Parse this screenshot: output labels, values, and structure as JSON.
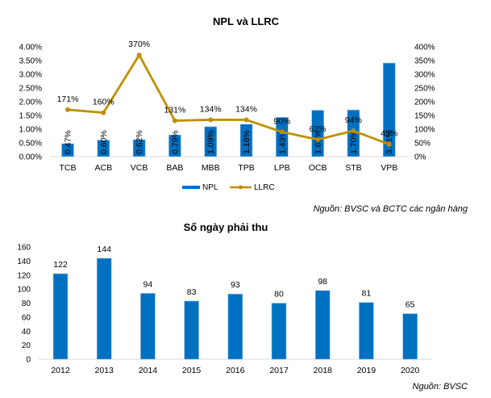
{
  "chart_data": [
    {
      "type": "bar+line",
      "title": "NPL và LLRC",
      "categories": [
        "TCB",
        "ACB",
        "VCB",
        "BAB",
        "MBB",
        "TPB",
        "LPB",
        "OCB",
        "STB",
        "VPB"
      ],
      "series": [
        {
          "name": "NPL",
          "type": "bar",
          "axis": "left",
          "color": "#0070C0",
          "values": [
            0.47,
            0.6,
            0.62,
            0.79,
            1.09,
            1.18,
            1.43,
            1.69,
            1.7,
            3.41
          ],
          "labels": [
            "0.47%",
            "0.60%",
            "0.62%",
            "0.79%",
            "1.09%",
            "1.18%",
            "1.43%",
            "1.69%",
            "1.70%",
            "3.41%"
          ]
        },
        {
          "name": "LLRC",
          "type": "line",
          "axis": "right",
          "color": "#BF9000",
          "values": [
            171,
            160,
            370,
            131,
            134,
            134,
            90,
            62,
            94,
            45
          ],
          "labels": [
            "171%",
            "160%",
            "370%",
            "131%",
            "134%",
            "134%",
            "90%",
            "62%",
            "94%",
            "45%"
          ]
        }
      ],
      "y_left": {
        "ylim": [
          0,
          4
        ],
        "ticks": [
          0,
          0.5,
          1,
          1.5,
          2,
          2.5,
          3,
          3.5,
          4
        ],
        "tick_labels": [
          "0.00%",
          "0.50%",
          "1.00%",
          "1.50%",
          "2.00%",
          "2.50%",
          "3.00%",
          "3.50%",
          "4.00%"
        ]
      },
      "y_right": {
        "ylim": [
          0,
          400
        ],
        "ticks": [
          0,
          50,
          100,
          150,
          200,
          250,
          300,
          350,
          400
        ],
        "tick_labels": [
          "0%",
          "50%",
          "100%",
          "150%",
          "200%",
          "250%",
          "300%",
          "350%",
          "400%"
        ]
      },
      "grid": false,
      "legend": {
        "placement": "bottom",
        "entries": [
          "NPL",
          "LLRC"
        ]
      },
      "source": "Nguồn: BVSC và BCTC các ngân hàng"
    },
    {
      "type": "bar",
      "title": "Số ngày phải thu",
      "categories": [
        "2012",
        "2013",
        "2014",
        "2015",
        "2016",
        "2017",
        "2018",
        "2019",
        "2020"
      ],
      "values": [
        122,
        144,
        94,
        83,
        93,
        80,
        98,
        81,
        65
      ],
      "color": "#0070C0",
      "ylim": [
        0,
        160
      ],
      "ticks": [
        0,
        20,
        40,
        60,
        80,
        100,
        120,
        140,
        160
      ],
      "tick_labels": [
        "0",
        "20",
        "40",
        "60",
        "80",
        "100",
        "120",
        "140",
        "160"
      ],
      "xlabel": "",
      "ylabel": "",
      "grid": false,
      "source": "Nguồn: BVSC"
    }
  ]
}
